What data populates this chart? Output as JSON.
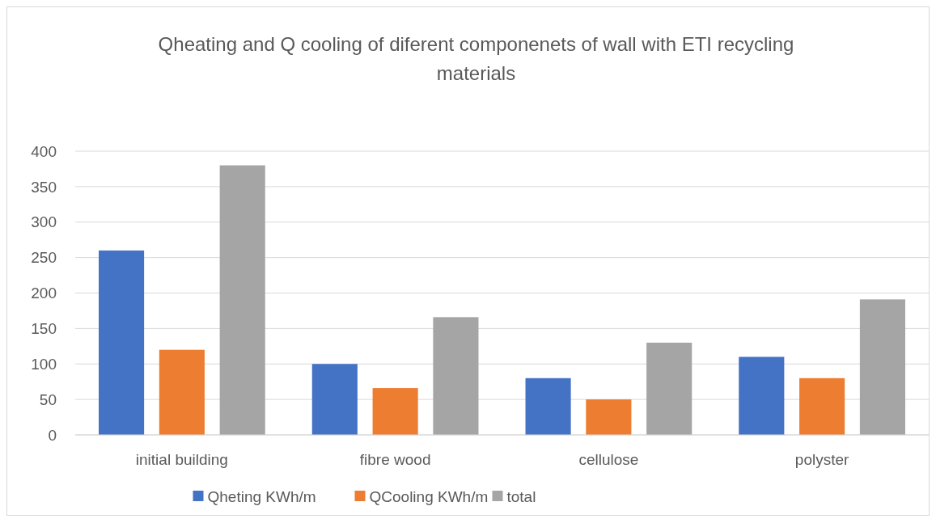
{
  "chart_data": {
    "type": "bar",
    "title": "Qheating and Q cooling of diferent componenets  of wall with ETI recycling materials",
    "categories": [
      "initial building",
      "fibre wood",
      "cellulose",
      "polyster"
    ],
    "series": [
      {
        "name": "Qheting KWh/m",
        "color": "#4472c4",
        "values": [
          260,
          100,
          80,
          110
        ]
      },
      {
        "name": "QCooling KWh/m",
        "color": "#ed7d31",
        "values": [
          120,
          66,
          50,
          80
        ]
      },
      {
        "name": "total",
        "color": "#a5a5a5",
        "values": [
          380,
          166,
          130,
          191
        ]
      }
    ],
    "ylim": [
      0,
      400
    ],
    "yticks": [
      0,
      50,
      100,
      150,
      200,
      250,
      300,
      350,
      400
    ],
    "grid": "y",
    "legend": "bottom"
  }
}
